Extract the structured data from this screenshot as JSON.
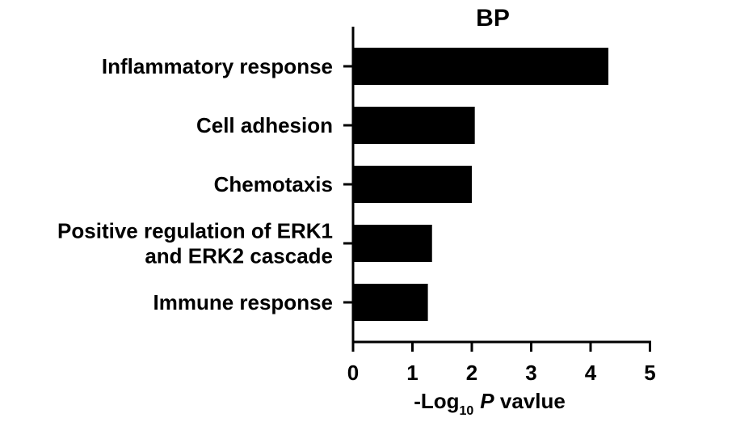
{
  "chart_data": {
    "type": "bar",
    "orientation": "horizontal",
    "title": "BP",
    "categories": [
      [
        "Inflammatory response"
      ],
      [
        "Cell adhesion"
      ],
      [
        "Chemotaxis"
      ],
      [
        "Positive regulation of ERK1",
        "and  ERK2 cascade"
      ],
      [
        "Immune response"
      ]
    ],
    "values": [
      4.3,
      2.05,
      2.0,
      1.33,
      1.26
    ],
    "xlabel": {
      "prefix": "-Log",
      "subscript": "10",
      "italic": "P",
      "suffix": " vavlue"
    },
    "xlim": [
      0,
      5
    ],
    "xticks": [
      "0",
      "1",
      "2",
      "3",
      "4",
      "5"
    ],
    "bar_color": "#000000",
    "grid": false,
    "legend": "none"
  }
}
